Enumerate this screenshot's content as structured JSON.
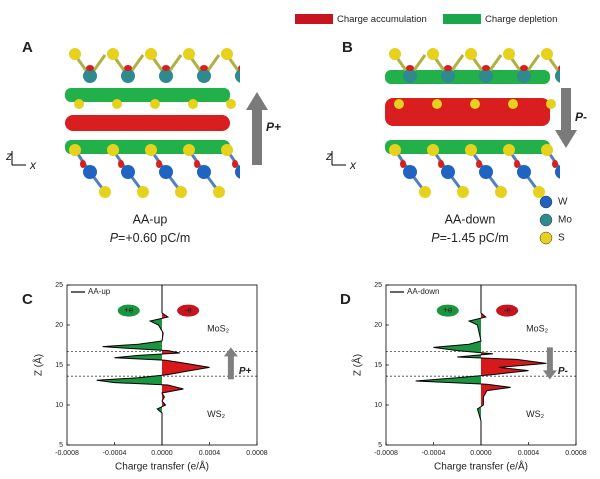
{
  "legend": [
    {
      "label": "Charge accumulation",
      "color": "#c8141e"
    },
    {
      "label": "Charge depletion",
      "color": "#1aa64a"
    }
  ],
  "panels": [
    {
      "letter": "A",
      "caption": "AA-up",
      "p_symbol": "P",
      "p_text": "=+0.60 pC/m",
      "arrow_label": "P+",
      "direction": "up"
    },
    {
      "letter": "B",
      "caption": "AA-down",
      "p_symbol": "P",
      "p_text": "=-1.45 pC/m",
      "arrow_label": "P-",
      "direction": "down"
    }
  ],
  "axes_glyphs": {
    "z": "z",
    "x": "x"
  },
  "atom_legend": [
    {
      "label": "W",
      "color": "#1f64c0"
    },
    {
      "label": "Mo",
      "color": "#2e8a8e"
    },
    {
      "label": "S",
      "color": "#e6d21c"
    }
  ],
  "chart_data": [
    {
      "type": "line",
      "letter": "C",
      "xlabel": "Charge transfer (e/Å)",
      "ylabel": "Z (Å)",
      "xlim": [
        -0.0008,
        0.0008
      ],
      "xticks": [
        -0.0008,
        -0.0004,
        {
          "value": 0,
          "label": "0.0000"
        },
        0.0004,
        0.0008
      ],
      "ylim": [
        5,
        25
      ],
      "yticks": [
        5,
        10,
        15,
        20,
        25
      ],
      "positive_color": "#d7191c",
      "negative_color": "#1a9641",
      "hlines": [
        13.6,
        16.7
      ],
      "direction": "up",
      "annotations": {
        "plus": "+e",
        "minus": "-e",
        "top_layer": "MoS₂",
        "bottom_layer": "WS₂",
        "arrow_label": "P+"
      },
      "series": [
        {
          "name": "AA-up",
          "color": "#000000",
          "z": [
            5,
            8,
            9,
            9.5,
            10,
            10.5,
            11,
            11.5,
            12,
            12.5,
            12.8,
            13.1,
            13.4,
            13.8,
            14.2,
            14.7,
            15.2,
            15.6,
            15.9,
            16.2,
            16.5,
            16.8,
            17.1,
            17.3,
            17.6,
            18,
            19,
            20,
            20.5,
            21,
            21.5,
            23,
            25
          ],
          "values": [
            0,
            0,
            0,
            -4e-05,
            3e-05,
            0,
            2e-05,
            0,
            0.00018,
            5e-05,
            -0.0004,
            -0.00055,
            -0.0002,
            5e-05,
            0.0002,
            0.0004,
            0.0002,
            3e-05,
            -0.0004,
            -0.0002,
            0.00015,
            5e-05,
            -0.0003,
            -0.0005,
            -0.0002,
            0,
            1e-05,
            -3e-05,
            -0.0001,
            5e-05,
            0,
            0,
            0
          ]
        }
      ]
    },
    {
      "type": "line",
      "letter": "D",
      "xlabel": "Charge transfer (e/Å)",
      "ylabel": "Z (Å)",
      "xlim": [
        -0.0008,
        0.0008
      ],
      "xticks": [
        -0.0008,
        -0.0004,
        {
          "value": 0,
          "label": "0.0000"
        },
        0.0004,
        0.0008
      ],
      "ylim": [
        5,
        25
      ],
      "yticks": [
        5,
        10,
        15,
        20,
        25
      ],
      "positive_color": "#d7191c",
      "negative_color": "#1a9641",
      "hlines": [
        13.6,
        16.7
      ],
      "direction": "down",
      "annotations": {
        "plus": "+e",
        "minus": "-e",
        "top_layer": "MoS₂",
        "bottom_layer": "WS₂",
        "arrow_label": "P-"
      },
      "series": [
        {
          "name": "AA-down",
          "color": "#000000",
          "z": [
            5,
            8,
            9.5,
            10,
            11,
            11.8,
            12.2,
            12.6,
            13,
            13.4,
            13.8,
            14.3,
            14.7,
            15.2,
            15.7,
            16,
            16.4,
            16.8,
            17.2,
            17.6,
            18,
            20,
            20.5,
            21,
            21.5,
            23,
            25
          ],
          "values": [
            0,
            0,
            -3e-05,
            2e-05,
            2e-05,
            5e-05,
            0.00025,
            5e-05,
            -0.00055,
            -0.0002,
            0.0001,
            0.0004,
            0.00015,
            0.00055,
            0.0003,
            -0.0002,
            0.0001,
            -0.0002,
            -0.0004,
            -0.0001,
            0,
            -3e-05,
            -0.0001,
            4e-05,
            0,
            0,
            0
          ]
        }
      ]
    }
  ]
}
